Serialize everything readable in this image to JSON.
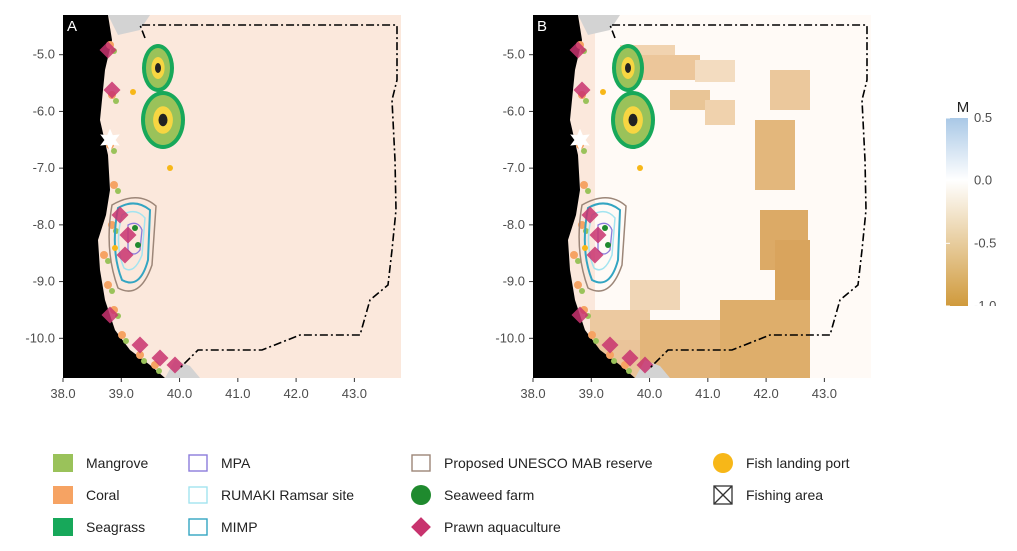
{
  "panels": [
    {
      "letter": "A",
      "id": "a"
    },
    {
      "letter": "B",
      "id": "b"
    }
  ],
  "axes": {
    "x_ticks": [
      "38.0",
      "39.0",
      "40.0",
      "41.0",
      "42.0",
      "43.0"
    ],
    "y_ticks": [
      "-5.0",
      "-6.0",
      "-7.0",
      "-8.0",
      "-9.0",
      "-10.0"
    ],
    "x_values": [
      38.0,
      39.0,
      40.0,
      41.0,
      42.0,
      43.0
    ],
    "y_values": [
      -5.0,
      -6.0,
      -7.0,
      -8.0,
      -9.0,
      -10.0
    ],
    "x_range": [
      38.0,
      43.8
    ],
    "y_range": [
      -10.7,
      -4.3
    ]
  },
  "colorbar": {
    "title": "M",
    "ticks": [
      "0.5",
      "0.0",
      "-0.5",
      "-1.0"
    ],
    "tick_values": [
      0.5,
      0.0,
      -0.5,
      -1.0
    ],
    "range": [
      -1.0,
      0.5
    ],
    "colors": {
      "high": "#a9c8e6",
      "mid": "#ffffff",
      "low": "#d09a3c"
    }
  },
  "colors": {
    "land": "#000000",
    "sea_faint": "#fbe8dc",
    "sea_white": "#fffaf6",
    "mangrove": "#9ac25a",
    "coral": "#f6a363",
    "seagrass": "#17a85a",
    "mpa": "#8c7cdb",
    "ramsar": "#a3e4f0",
    "mimp": "#33a5c2",
    "unesco": "#9c8678",
    "seaweed": "#1f8a2e",
    "prawn": "#c8336e",
    "fish_port": "#f7b718",
    "fishing_area": "#333333",
    "neighbor_land": "#d3d3d3",
    "eez_boundary": "#000000"
  },
  "legend": [
    {
      "key": "mangrove",
      "label": "Mangrove",
      "symbol": "filled-square"
    },
    {
      "key": "coral",
      "label": "Coral",
      "symbol": "filled-square"
    },
    {
      "key": "seagrass",
      "label": "Seagrass",
      "symbol": "filled-square"
    },
    {
      "key": "mpa",
      "label": "MPA",
      "symbol": "outline-square"
    },
    {
      "key": "ramsar",
      "label": "RUMAKI Ramsar site",
      "symbol": "outline-square"
    },
    {
      "key": "mimp",
      "label": "MIMP",
      "symbol": "outline-square"
    },
    {
      "key": "unesco",
      "label": "Proposed UNESCO MAB reserve",
      "symbol": "outline-square"
    },
    {
      "key": "seaweed",
      "label": "Seaweed farm",
      "symbol": "circle"
    },
    {
      "key": "prawn",
      "label": "Prawn aquaculture",
      "symbol": "diamond"
    },
    {
      "key": "fish_port",
      "label": "Fish landing port",
      "symbol": "circle"
    },
    {
      "key": "fishing_area",
      "label": "Fishing area",
      "symbol": "boxed-x"
    }
  ]
}
